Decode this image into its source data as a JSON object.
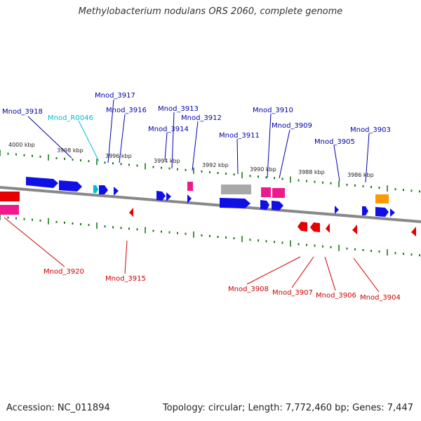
{
  "title": "Methylobacterium nodulans ORS 2060, complete genome",
  "footer": {
    "accession": "Accession: NC_011894",
    "topology": "Topology: circular; Length: 7,772,460 bp; Genes: 7,447"
  },
  "colors": {
    "cds": "#1010e6",
    "cds_reverse": "#e60000",
    "rrna": "#ee1a8c",
    "trna": "#00bcd4",
    "pseudo": "#a8a8a8",
    "misc": "#ff9a00",
    "ticks": "#1a7a1a",
    "backbone": "#888888"
  },
  "ruler_labels": [
    "4000 kbp",
    "3998 kbp",
    "3996 kbp",
    "3994 kbp",
    "3992 kbp",
    "3990 kbp",
    "3988 kbp",
    "3986 kbp"
  ],
  "forward_labels": [
    "Mnod_3918",
    "Mnod_R0046",
    "Mnod_3917",
    "Mnod_3916",
    "Mnod_3913",
    "Mnod_3914",
    "Mnod_3912",
    "Mnod_3911",
    "Mnod_3910",
    "Mnod_3909",
    "Mnod_3905",
    "Mnod_3903"
  ],
  "reverse_labels": [
    "Mnod_3920",
    "Mnod_3915",
    "Mnod_3908",
    "Mnod_3907",
    "Mnod_3906",
    "Mnod_3904"
  ]
}
